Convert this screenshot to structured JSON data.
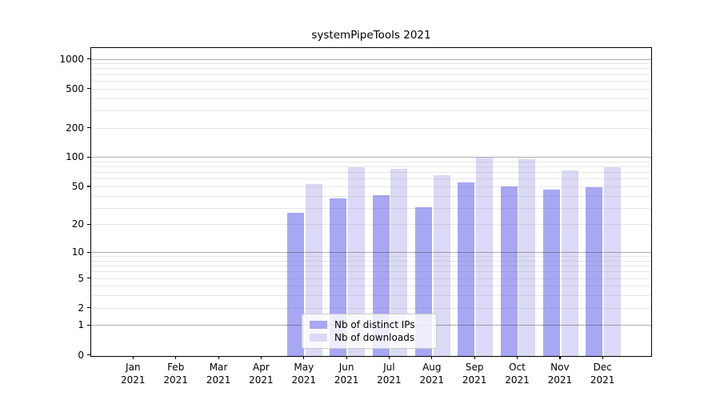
{
  "chart_data": {
    "type": "bar",
    "title": "systemPipeTools 2021",
    "categories": [
      "Jan",
      "Feb",
      "Mar",
      "Apr",
      "May",
      "Jun",
      "Jul",
      "Aug",
      "Sep",
      "Oct",
      "Nov",
      "Dec"
    ],
    "category_year": "2021",
    "series": [
      {
        "name": "Nb of distinct IPs",
        "key": "distinct-ips",
        "color": "#a7a7f3",
        "values": [
          null,
          null,
          null,
          null,
          27,
          38,
          41,
          31,
          56,
          51,
          47,
          50
        ]
      },
      {
        "name": "Nb of downloads",
        "key": "downloads",
        "color": "#dadaf6",
        "values": [
          null,
          null,
          null,
          null,
          54,
          81,
          78,
          67,
          100,
          97,
          74,
          81
        ]
      }
    ],
    "yscale": "log10(1+x)",
    "y_ticks": [
      0,
      1,
      2,
      5,
      10,
      20,
      50,
      100,
      200,
      500,
      1000
    ],
    "ylim": [
      0,
      1300
    ],
    "grid": {
      "major_lines": [
        1,
        10,
        100,
        1000
      ],
      "minor_lines": [
        2,
        3,
        4,
        5,
        6,
        7,
        8,
        9,
        20,
        30,
        40,
        50,
        60,
        70,
        80,
        90,
        200,
        300,
        400,
        500,
        600,
        700,
        800,
        900
      ]
    },
    "legend_position": "inside-bottom-center"
  },
  "colors": {
    "background": "#ffffff",
    "axis": "#000000",
    "bar_distinct_ips": "#a7a7f3",
    "bar_downloads": "#dadaf6",
    "legend_border": "#cccccc"
  }
}
